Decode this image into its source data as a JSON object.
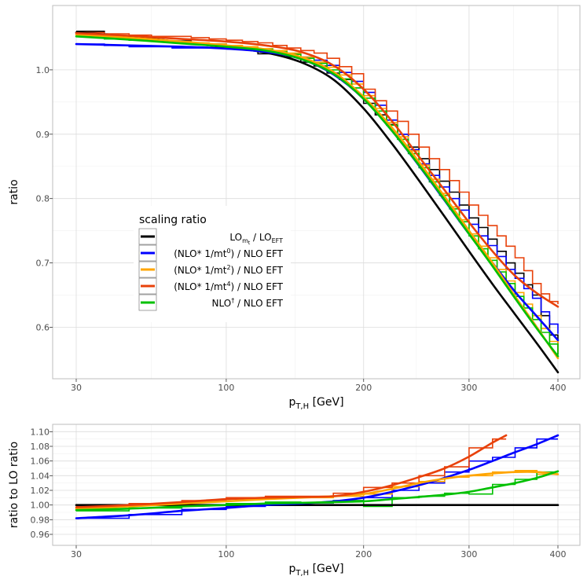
{
  "chart_data": [
    {
      "type": "line",
      "panel": "top",
      "xlabel": "p_T,H [GeV]",
      "xlabel_main": "p",
      "xlabel_sub": "T,H",
      "xlabel_unit": " [GeV]",
      "ylabel": "ratio",
      "xscale": "sqrt",
      "xlim": [
        30,
        400
      ],
      "ylim": [
        0.52,
        1.1
      ],
      "xticks": [
        30,
        100,
        200,
        300,
        400
      ],
      "yticks": [
        0.6,
        0.7,
        0.8,
        0.9,
        1.0
      ],
      "ytick_labels": [
        "0.6",
        "0.7",
        "0.8",
        "0.9",
        "1.0"
      ],
      "legend": {
        "title": "scaling ratio",
        "position": "center-left",
        "entries": [
          {
            "series": "lo",
            "label": "LO_mt / LO_EFT",
            "parts": [
              "LO",
              "m",
              "t",
              " / LO",
              "EFT"
            ]
          },
          {
            "series": "nlo0",
            "label": "(NLO* 1/mt^0) / NLO EFT",
            "parts": [
              "(NLO* 1/mt",
              "0",
              ") / NLO EFT"
            ]
          },
          {
            "series": "nlo2",
            "label": "(NLO* 1/mt^2) / NLO EFT",
            "parts": [
              "(NLO* 1/mt",
              "2",
              ") / NLO EFT"
            ]
          },
          {
            "series": "nlo4",
            "label": "(NLO* 1/mt^4) / NLO EFT",
            "parts": [
              "(NLO* 1/mt",
              "4",
              ") / NLO EFT"
            ]
          },
          {
            "series": "nlodag",
            "label": "NLO† / NLO EFT",
            "parts": [
              "NLO",
              "†",
              " / NLO EFT"
            ]
          }
        ]
      },
      "series": [
        {
          "id": "lo",
          "color": "#000000",
          "curve_x": [
            30,
            50,
            75,
            100,
            125,
            150,
            175,
            200,
            225,
            250,
            275,
            300,
            325,
            350,
            375,
            400
          ],
          "curve_y": [
            1.058,
            1.052,
            1.043,
            1.035,
            1.027,
            1.012,
            0.985,
            0.94,
            0.885,
            0.828,
            0.772,
            0.718,
            0.667,
            0.62,
            0.575,
            0.53
          ],
          "hist_edges": [
            30,
            40,
            50,
            60,
            70,
            80,
            90,
            100,
            110,
            120,
            130,
            140,
            150,
            160,
            170,
            180,
            190,
            200,
            210,
            220,
            230,
            240,
            250,
            260,
            270,
            280,
            290,
            300,
            310,
            320,
            330,
            340,
            350,
            360,
            370,
            380,
            390,
            400
          ],
          "hist_vals": [
            1.06,
            1.05,
            1.05,
            1.045,
            1.045,
            1.04,
            1.04,
            1.036,
            1.033,
            1.025,
            1.025,
            1.02,
            1.012,
            1.006,
            0.995,
            0.985,
            0.972,
            0.948,
            0.93,
            0.915,
            0.9,
            0.88,
            0.862,
            0.845,
            0.827,
            0.81,
            0.79,
            0.77,
            0.755,
            0.737,
            0.718,
            0.7,
            0.684,
            0.666,
            0.65,
            0.618,
            0.588,
            0.558
          ]
        },
        {
          "id": "nlo0",
          "color": "#0000ff",
          "curve_x": [
            30,
            50,
            75,
            100,
            125,
            150,
            175,
            200,
            225,
            250,
            275,
            300,
            325,
            350,
            375,
            400
          ],
          "curve_y": [
            1.04,
            1.038,
            1.036,
            1.033,
            1.028,
            1.017,
            0.993,
            0.955,
            0.905,
            0.851,
            0.797,
            0.745,
            0.7,
            0.655,
            0.617,
            0.58
          ],
          "hist_edges": [
            30,
            40,
            50,
            60,
            70,
            80,
            90,
            100,
            110,
            120,
            130,
            140,
            150,
            160,
            170,
            180,
            190,
            200,
            210,
            220,
            230,
            240,
            250,
            260,
            270,
            280,
            290,
            300,
            310,
            320,
            330,
            340,
            350,
            360,
            370,
            380,
            390,
            400
          ],
          "hist_vals": [
            1.04,
            1.038,
            1.036,
            1.036,
            1.034,
            1.034,
            1.034,
            1.033,
            1.032,
            1.03,
            1.027,
            1.024,
            1.02,
            1.015,
            1.007,
            0.996,
            0.982,
            0.965,
            0.945,
            0.922,
            0.9,
            0.876,
            0.854,
            0.836,
            0.818,
            0.8,
            0.782,
            0.76,
            0.742,
            0.727,
            0.71,
            0.69,
            0.676,
            0.66,
            0.645,
            0.624,
            0.605,
            0.59
          ]
        },
        {
          "id": "nlo2",
          "color": "#ffa500",
          "curve_x": [
            30,
            50,
            75,
            100,
            125,
            150,
            175,
            200,
            225,
            250,
            275,
            300,
            325,
            350,
            375,
            400
          ],
          "curve_y": [
            1.055,
            1.05,
            1.044,
            1.038,
            1.032,
            1.02,
            0.997,
            0.958,
            0.91,
            0.857,
            0.803,
            0.75,
            0.7,
            0.648,
            0.6,
            0.552
          ],
          "hist_edges": [
            30,
            40,
            50,
            60,
            70,
            80,
            90,
            100,
            110,
            120,
            130,
            140,
            150,
            160,
            170,
            180,
            190,
            200,
            210,
            220,
            230,
            240,
            250,
            260,
            270,
            280,
            290,
            300,
            310,
            320,
            330,
            340,
            350,
            360,
            370,
            380,
            390,
            400
          ],
          "hist_vals": [
            1.055,
            1.05,
            1.048,
            1.045,
            1.044,
            1.042,
            1.04,
            1.038,
            1.036,
            1.033,
            1.03,
            1.026,
            1.02,
            1.012,
            1.004,
            0.992,
            0.978,
            0.96,
            0.94,
            0.918,
            0.896,
            0.874,
            0.852,
            0.83,
            0.808,
            0.787,
            0.767,
            0.745,
            0.726,
            0.708,
            0.69,
            0.672,
            0.654,
            0.636,
            0.618,
            0.598,
            0.578,
            0.56
          ]
        },
        {
          "id": "nlo4",
          "color": "#e8410a",
          "curve_x": [
            30,
            50,
            75,
            100,
            125,
            150,
            175,
            200,
            225,
            250,
            275,
            300,
            325,
            350,
            375,
            400
          ],
          "curve_y": [
            1.057,
            1.053,
            1.048,
            1.044,
            1.038,
            1.028,
            1.007,
            0.97,
            0.92,
            0.865,
            0.813,
            0.763,
            0.718,
            0.68,
            0.653,
            0.632
          ],
          "hist_edges": [
            30,
            40,
            50,
            60,
            70,
            80,
            90,
            100,
            110,
            120,
            130,
            140,
            150,
            160,
            170,
            180,
            190,
            200,
            210,
            220,
            230,
            240,
            250,
            260,
            270,
            280,
            290,
            300,
            310,
            320,
            330,
            340,
            350,
            360,
            370,
            380,
            390,
            400
          ],
          "hist_vals": [
            1.058,
            1.056,
            1.054,
            1.052,
            1.052,
            1.05,
            1.048,
            1.046,
            1.044,
            1.042,
            1.038,
            1.034,
            1.03,
            1.026,
            1.018,
            1.005,
            0.994,
            0.97,
            0.952,
            0.936,
            0.92,
            0.9,
            0.88,
            0.862,
            0.845,
            0.828,
            0.81,
            0.79,
            0.774,
            0.758,
            0.742,
            0.726,
            0.708,
            0.688,
            0.668,
            0.652,
            0.64,
            0.636
          ]
        },
        {
          "id": "nlodag",
          "color": "#00c000",
          "curve_x": [
            30,
            50,
            75,
            100,
            125,
            150,
            175,
            200,
            225,
            250,
            275,
            300,
            325,
            350,
            375,
            400
          ],
          "curve_y": [
            1.052,
            1.047,
            1.041,
            1.036,
            1.03,
            1.017,
            0.994,
            0.955,
            0.905,
            0.852,
            0.798,
            0.745,
            0.695,
            0.645,
            0.598,
            0.555
          ],
          "hist_edges": [
            30,
            40,
            50,
            60,
            70,
            80,
            90,
            100,
            110,
            120,
            130,
            140,
            150,
            160,
            170,
            180,
            190,
            200,
            210,
            220,
            230,
            240,
            250,
            260,
            270,
            280,
            290,
            300,
            310,
            320,
            330,
            340,
            350,
            360,
            370,
            380,
            390,
            400
          ],
          "hist_vals": [
            1.052,
            1.048,
            1.046,
            1.045,
            1.043,
            1.04,
            1.038,
            1.036,
            1.034,
            1.032,
            1.028,
            1.024,
            1.018,
            1.01,
            1.0,
            0.986,
            0.972,
            0.956,
            0.936,
            0.914,
            0.892,
            0.87,
            0.848,
            0.826,
            0.805,
            0.784,
            0.764,
            0.742,
            0.722,
            0.704,
            0.686,
            0.668,
            0.648,
            0.63,
            0.612,
            0.592,
            0.574,
            0.557
          ]
        }
      ]
    },
    {
      "type": "line",
      "panel": "bottom",
      "xlabel": "p_T,H [GeV]",
      "ylabel": "ratio to LO ratio",
      "xscale": "sqrt",
      "xlim": [
        30,
        400
      ],
      "ylim": [
        0.945,
        1.11
      ],
      "xticks": [
        30,
        100,
        200,
        300,
        400
      ],
      "yticks": [
        0.96,
        0.98,
        1.0,
        1.02,
        1.04,
        1.06,
        1.08,
        1.1
      ],
      "ytick_labels": [
        "0.96",
        "0.98",
        "1.00",
        "1.02",
        "1.04",
        "1.06",
        "1.08",
        "1.10"
      ],
      "series": [
        {
          "id": "lo",
          "color": "#000000",
          "curve_x": [
            30,
            400
          ],
          "curve_y": [
            1.0,
            1.0
          ],
          "hist_edges": [
            30,
            400
          ],
          "hist_vals": [
            1.0
          ]
        },
        {
          "id": "nlo0",
          "color": "#0000ff",
          "curve_x": [
            30,
            50,
            75,
            100,
            125,
            150,
            175,
            200,
            225,
            250,
            275,
            300,
            325,
            350,
            375,
            400
          ],
          "curve_y": [
            0.982,
            0.986,
            0.992,
            0.996,
            1.0,
            1.002,
            1.005,
            1.01,
            1.018,
            1.027,
            1.037,
            1.048,
            1.06,
            1.072,
            1.083,
            1.095
          ],
          "hist_edges": [
            30,
            50,
            75,
            100,
            125,
            150,
            175,
            200,
            225,
            250,
            275,
            300,
            325,
            350,
            375,
            400
          ],
          "hist_vals": [
            0.982,
            0.987,
            0.994,
            0.998,
            1.0,
            1.003,
            1.006,
            1.01,
            1.02,
            1.03,
            1.045,
            1.06,
            1.065,
            1.078,
            1.09
          ]
        },
        {
          "id": "nlo2",
          "color": "#ffa500",
          "curve_x": [
            30,
            50,
            75,
            100,
            125,
            150,
            175,
            200,
            225,
            250,
            275,
            300,
            325,
            350,
            375,
            400
          ],
          "curve_y": [
            0.995,
            0.998,
            1.002,
            1.005,
            1.008,
            1.01,
            1.012,
            1.015,
            1.022,
            1.03,
            1.036,
            1.04,
            1.043,
            1.045,
            1.045,
            1.042
          ],
          "hist_edges": [
            30,
            50,
            75,
            100,
            125,
            150,
            175,
            200,
            225,
            250,
            275,
            300,
            325,
            350,
            375,
            400
          ],
          "hist_vals": [
            0.995,
            1.0,
            1.005,
            1.008,
            1.01,
            1.01,
            1.012,
            1.015,
            1.025,
            1.032,
            1.038,
            1.04,
            1.045,
            1.047,
            1.042
          ]
        },
        {
          "id": "nlo4",
          "color": "#e8410a",
          "curve_x": [
            30,
            50,
            75,
            100,
            125,
            150,
            175,
            200,
            225,
            250,
            275,
            300,
            325,
            340
          ],
          "curve_y": [
            0.997,
            1.0,
            1.004,
            1.008,
            1.01,
            1.011,
            1.012,
            1.018,
            1.027,
            1.038,
            1.05,
            1.066,
            1.085,
            1.095
          ],
          "hist_edges": [
            30,
            50,
            75,
            100,
            125,
            150,
            175,
            200,
            225,
            250,
            275,
            300,
            325,
            340
          ],
          "hist_vals": [
            0.998,
            1.002,
            1.006,
            1.01,
            1.012,
            1.012,
            1.016,
            1.024,
            1.03,
            1.04,
            1.052,
            1.078,
            1.09
          ]
        },
        {
          "id": "nlodag",
          "color": "#00c000",
          "curve_x": [
            30,
            50,
            75,
            100,
            125,
            150,
            175,
            200,
            225,
            250,
            275,
            300,
            325,
            350,
            375,
            400
          ],
          "curve_y": [
            0.993,
            0.995,
            0.998,
            1.0,
            1.002,
            1.003,
            1.004,
            1.005,
            1.008,
            1.011,
            1.014,
            1.018,
            1.024,
            1.03,
            1.037,
            1.046
          ],
          "hist_edges": [
            30,
            50,
            75,
            100,
            125,
            150,
            175,
            200,
            225,
            250,
            275,
            300,
            325,
            350,
            375,
            400
          ],
          "hist_vals": [
            0.992,
            0.996,
            1.0,
            1.002,
            1.004,
            1.003,
            1.006,
            0.998,
            1.01,
            1.012,
            1.016,
            1.015,
            1.028,
            1.035,
            1.045
          ]
        }
      ]
    }
  ]
}
